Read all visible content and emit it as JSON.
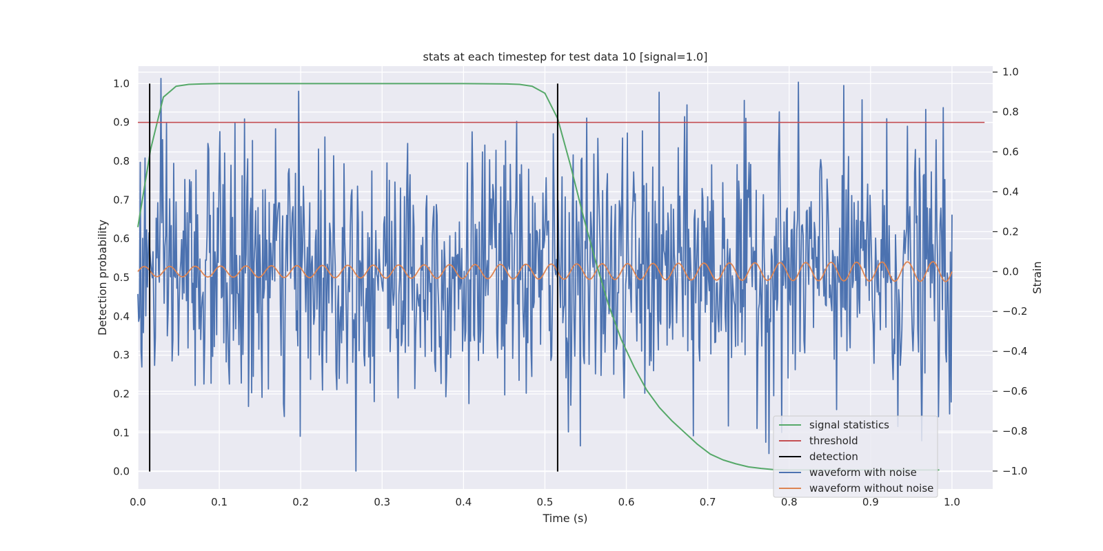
{
  "chart_data": {
    "type": "line",
    "title": "stats at each timestep for test data 10 [signal=1.0]",
    "xlabel": "Time (s)",
    "ylabel": "Detection probability",
    "ylabel_right": "Strain",
    "xlim": [
      0.0,
      1.05
    ],
    "ylim": [
      -0.045,
      1.045
    ],
    "ylim_right": [
      -1.09,
      1.03
    ],
    "x_ticks": [
      0.0,
      0.1,
      0.2,
      0.3,
      0.4,
      0.5,
      0.6,
      0.7,
      0.8,
      0.9,
      1.0
    ],
    "x_tick_labels": [
      "0.0",
      "0.1",
      "0.2",
      "0.3",
      "0.4",
      "0.5",
      "0.6",
      "0.7",
      "0.8",
      "0.9",
      "1.0"
    ],
    "y_ticks": [
      0.0,
      0.1,
      0.2,
      0.3,
      0.4,
      0.5,
      0.6,
      0.7,
      0.8,
      0.9,
      1.0
    ],
    "y_tick_labels": [
      "0.0",
      "0.1",
      "0.2",
      "0.3",
      "0.4",
      "0.5",
      "0.6",
      "0.7",
      "0.8",
      "0.9",
      "1.0"
    ],
    "y_right_ticks": [
      1.0,
      0.8,
      0.6,
      0.4,
      0.2,
      0.0,
      -0.2,
      -0.4,
      -0.6,
      -0.8,
      -1.0
    ],
    "y_right_tick_labels": [
      "1.0",
      "0.8",
      "0.6",
      "0.4",
      "0.2",
      "0.0",
      "−0.2",
      "−0.4",
      "−0.6",
      "−0.8",
      "−1.0"
    ],
    "grid": true,
    "legend_position": "lower-right",
    "series": [
      {
        "name": "signal statistics",
        "axis": "left",
        "color": "#55a868",
        "x": [
          0.0,
          0.0156,
          0.0313,
          0.0469,
          0.0625,
          0.0781,
          0.1,
          0.2,
          0.3,
          0.4,
          0.4531,
          0.4688,
          0.4844,
          0.5,
          0.5156,
          0.5313,
          0.5469,
          0.5625,
          0.5781,
          0.5938,
          0.6094,
          0.625,
          0.6406,
          0.6563,
          0.6719,
          0.6875,
          0.7031,
          0.7188,
          0.7344,
          0.75,
          0.7656,
          0.7813,
          0.8,
          0.9,
          0.9688,
          0.9844
        ],
        "y": [
          0.63,
          0.83,
          0.965,
          0.993,
          0.998,
          0.999,
          1.0,
          1.0,
          1.0,
          1.0,
          0.999,
          0.998,
          0.993,
          0.975,
          0.91,
          0.79,
          0.66,
          0.54,
          0.43,
          0.34,
          0.27,
          0.21,
          0.165,
          0.13,
          0.1,
          0.07,
          0.045,
          0.03,
          0.02,
          0.012,
          0.008,
          0.005,
          0.004,
          0.004,
          0.004,
          0.004
        ]
      },
      {
        "name": "threshold",
        "axis": "left",
        "color": "#c44e52",
        "x": [
          0.0,
          1.04
        ],
        "y": [
          0.9,
          0.9
        ]
      },
      {
        "name": "detection",
        "axis": "left",
        "color": "#000000",
        "segments": [
          {
            "x": 0.0145,
            "y0": 0.0,
            "y1": 1.0
          },
          {
            "x": 0.5156,
            "y0": 0.0,
            "y1": 1.0
          }
        ]
      },
      {
        "name": "waveform with noise",
        "axis": "right",
        "color": "#4c72b0",
        "x_start": 0.0,
        "x_end": 1.0,
        "sample_count": 1024,
        "description_range": [
          -1.0,
          1.0
        ]
      },
      {
        "name": "waveform without noise",
        "axis": "right",
        "color": "#dd8452",
        "x_start": 0.0,
        "x_end": 1.0,
        "cycles": 32,
        "amplitude_start": 0.025,
        "amplitude_end": 0.05
      }
    ]
  }
}
